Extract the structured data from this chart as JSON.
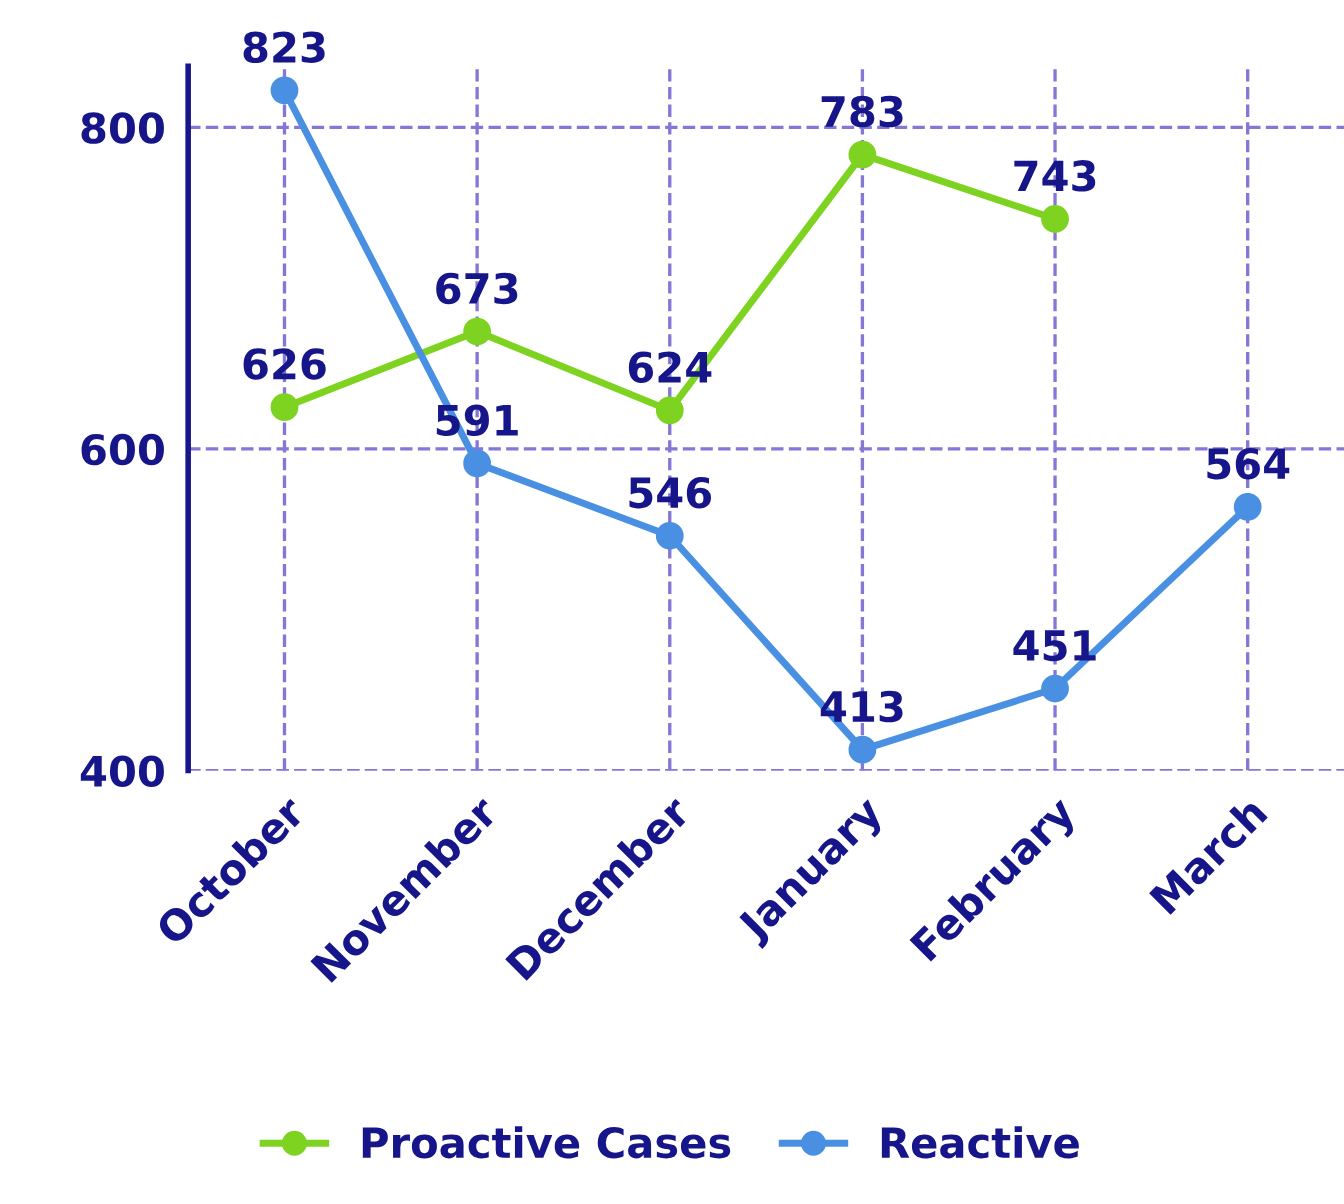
{
  "chart_data": {
    "type": "line",
    "categories": [
      "October",
      "November",
      "December",
      "January",
      "February",
      "March"
    ],
    "series": [
      {
        "name": "Proactive Cases",
        "color": "#7ed321",
        "values": [
          626,
          673,
          624,
          783,
          743,
          null
        ]
      },
      {
        "name": "Reactive",
        "color": "#4a90e2",
        "values": [
          823,
          591,
          546,
          413,
          451,
          564
        ]
      }
    ],
    "ylim": [
      400,
      838
    ],
    "yticks": [
      400,
      600,
      800
    ],
    "grid": true,
    "legend": "bottom",
    "marker": "circle",
    "line_style": "solid",
    "data_labels": true
  }
}
